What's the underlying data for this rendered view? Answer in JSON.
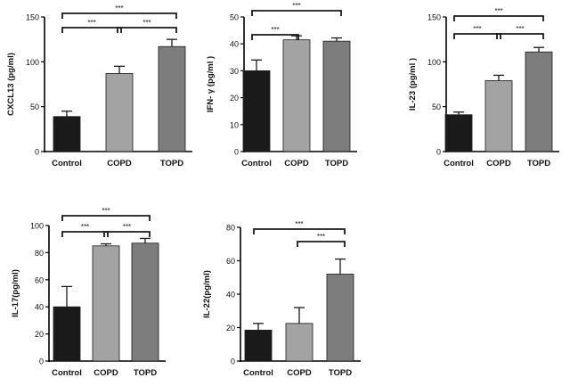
{
  "chart_data": [
    {
      "type": "bar",
      "ylabel": "CXCL13 (pg/ml)",
      "ylim": [
        0,
        150
      ],
      "yticks": [
        0,
        50,
        100,
        150
      ],
      "categories": [
        "Control",
        "COPD",
        "TOPD"
      ],
      "values": [
        39,
        87,
        117
      ],
      "errors": [
        6,
        8,
        8
      ],
      "colors": [
        "#1a1a1a",
        "#a3a3a3",
        "#7d7d7d"
      ],
      "significance": [
        {
          "from": 0,
          "to": 1,
          "label": "***"
        },
        {
          "from": 1,
          "to": 2,
          "label": "***"
        },
        {
          "from": 0,
          "to": 2,
          "label": "***"
        }
      ]
    },
    {
      "type": "bar",
      "ylabel": "IFN- γ (pg/ml )",
      "ylim": [
        0,
        50
      ],
      "yticks": [
        0,
        10,
        20,
        30,
        40,
        50
      ],
      "categories": [
        "Control",
        "COPD",
        "TOPD"
      ],
      "values": [
        30,
        41.5,
        41
      ],
      "errors": [
        4,
        1.5,
        1.2
      ],
      "colors": [
        "#1a1a1a",
        "#a3a3a3",
        "#7d7d7d"
      ],
      "significance": [
        {
          "from": 0,
          "to": 1,
          "label": "***"
        },
        {
          "from": 0,
          "to": 2,
          "label": "***"
        }
      ]
    },
    {
      "type": "bar",
      "ylabel": "IL-23 (pg/ml )",
      "ylim": [
        0,
        150
      ],
      "yticks": [
        0,
        50,
        100,
        150
      ],
      "categories": [
        "Control",
        "COPD",
        "TOPD"
      ],
      "values": [
        41,
        79,
        111
      ],
      "errors": [
        3,
        6,
        5
      ],
      "colors": [
        "#1a1a1a",
        "#a3a3a3",
        "#7d7d7d"
      ],
      "significance": [
        {
          "from": 0,
          "to": 1,
          "label": "***"
        },
        {
          "from": 1,
          "to": 2,
          "label": "***"
        },
        {
          "from": 0,
          "to": 2,
          "label": "***"
        }
      ]
    },
    {
      "type": "bar",
      "ylabel": "IL-17(pg/ml)",
      "ylim": [
        0,
        100
      ],
      "yticks": [
        0,
        20,
        40,
        60,
        80,
        100
      ],
      "categories": [
        "Control",
        "COPD",
        "TOPD"
      ],
      "values": [
        40,
        85,
        87
      ],
      "errors": [
        15,
        1.5,
        3.5
      ],
      "colors": [
        "#1a1a1a",
        "#a3a3a3",
        "#7d7d7d"
      ],
      "significance": [
        {
          "from": 0,
          "to": 1,
          "label": "***"
        },
        {
          "from": 1,
          "to": 2,
          "label": "***"
        },
        {
          "from": 0,
          "to": 2,
          "label": "***"
        }
      ]
    },
    {
      "type": "bar",
      "ylabel": "IL-22(pg/ml)",
      "ylim": [
        0,
        80
      ],
      "yticks": [
        0,
        20,
        40,
        60,
        80
      ],
      "categories": [
        "Control",
        "COPD",
        "TOPD"
      ],
      "values": [
        18.5,
        22.5,
        52
      ],
      "errors": [
        4,
        9.5,
        9
      ],
      "colors": [
        "#1a1a1a",
        "#a3a3a3",
        "#7d7d7d"
      ],
      "significance": [
        {
          "from": 1,
          "to": 2,
          "label": "***"
        },
        {
          "from": 0,
          "to": 2,
          "label": "***"
        }
      ]
    }
  ]
}
